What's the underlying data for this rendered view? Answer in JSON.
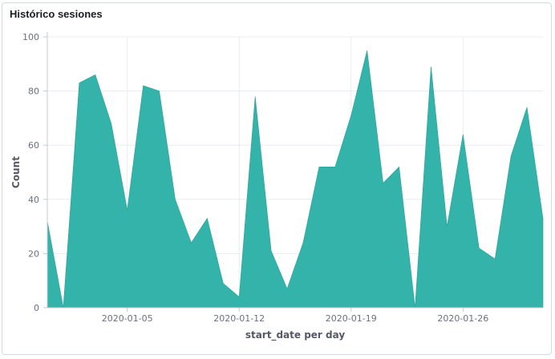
{
  "panel": {
    "title": "Histórico sesiones"
  },
  "chart_data": {
    "type": "area",
    "title": "Histórico sesiones",
    "xlabel": "start_date per day",
    "ylabel": "Count",
    "x": [
      "2019-12-31",
      "2020-01-01",
      "2020-01-02",
      "2020-01-03",
      "2020-01-04",
      "2020-01-05",
      "2020-01-06",
      "2020-01-07",
      "2020-01-08",
      "2020-01-09",
      "2020-01-10",
      "2020-01-11",
      "2020-01-12",
      "2020-01-13",
      "2020-01-14",
      "2020-01-15",
      "2020-01-16",
      "2020-01-17",
      "2020-01-18",
      "2020-01-19",
      "2020-01-20",
      "2020-01-21",
      "2020-01-22",
      "2020-01-23",
      "2020-01-24",
      "2020-01-25",
      "2020-01-26",
      "2020-01-27",
      "2020-01-28",
      "2020-01-29",
      "2020-01-30",
      "2020-01-31"
    ],
    "series": [
      {
        "values": [
          32,
          0,
          83,
          86,
          68,
          36,
          82,
          80,
          40,
          24,
          33,
          9,
          4,
          78,
          21,
          7,
          24,
          52,
          52,
          71,
          95,
          46,
          52,
          0,
          89,
          30,
          64,
          22,
          18,
          56,
          74,
          33
        ],
        "color": "#33b3aa"
      }
    ],
    "xlim": [
      "2019-12-31",
      "2020-01-31"
    ],
    "ylim": [
      0,
      100
    ],
    "yticks": [
      0,
      20,
      40,
      60,
      80,
      100
    ],
    "xtick_labels": [
      "2020-01-05",
      "2020-01-12",
      "2020-01-19",
      "2020-01-26"
    ],
    "grid": true,
    "legend": "none",
    "colors": {
      "area": "#33b3aa",
      "grid": "#e8ecf1",
      "axis": "#c5cbd4"
    }
  }
}
